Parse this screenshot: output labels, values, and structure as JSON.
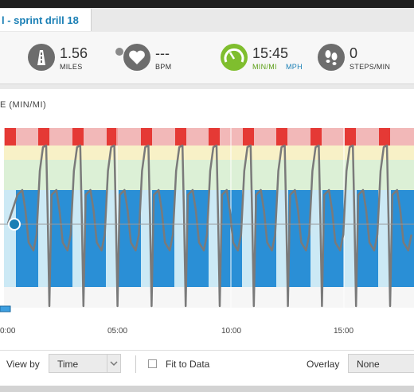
{
  "activity": {
    "title": "l - sprint drill 18"
  },
  "stats": [
    {
      "value": "1.56",
      "unit": "MILES",
      "icon": "distance-icon"
    },
    {
      "value": "---",
      "unit": "BPM",
      "icon": "heart-icon"
    },
    {
      "value": "15:45",
      "unit": "MIN/MI",
      "unit_alt": "MPH",
      "icon": "speedometer-icon"
    },
    {
      "value": "0",
      "unit": "STEPS/MIN",
      "icon": "footprints-icon"
    }
  ],
  "chart": {
    "ylabel": "E (MIN/MI)",
    "xticks": [
      "0:00",
      "05:00",
      "10:00",
      "15:00"
    ]
  },
  "controls": {
    "view_by_label": "View by",
    "view_by_value": "Time",
    "fit_label": "Fit to Data",
    "overlay_label": "Overlay",
    "overlay_value": "None"
  },
  "colors": {
    "accent": "#1a7fb5",
    "green": "#7fbe2e",
    "zone_red": "#f2b8b8",
    "zone_yellow": "#f8f1c7",
    "zone_green": "#dcf0d6",
    "zone_blue": "#cce9f5",
    "interval_blue": "#2a8fd6",
    "marker_red": "#e53935",
    "line": "#7a7a7a"
  }
}
